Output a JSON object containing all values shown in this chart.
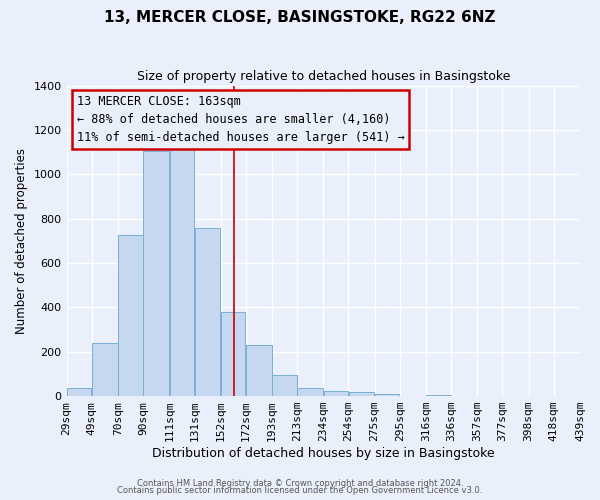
{
  "title": "13, MERCER CLOSE, BASINGSTOKE, RG22 6NZ",
  "subtitle": "Size of property relative to detached houses in Basingstoke",
  "xlabel": "Distribution of detached houses by size in Basingstoke",
  "ylabel": "Number of detached properties",
  "bar_edges": [
    29,
    49,
    70,
    90,
    111,
    131,
    152,
    172,
    193,
    213,
    234,
    254,
    275,
    295,
    316,
    336,
    357,
    377,
    398,
    418,
    439
  ],
  "bar_heights": [
    35,
    240,
    725,
    1105,
    1120,
    760,
    380,
    230,
    95,
    35,
    25,
    20,
    10,
    0,
    5,
    0,
    0,
    0,
    0,
    0
  ],
  "bar_color": "#c5d8f0",
  "bar_edge_color": "#7aafd4",
  "vline_x": 163,
  "vline_color": "#cc0000",
  "annotation_line1": "13 MERCER CLOSE: 163sqm",
  "annotation_line2": "← 88% of detached houses are smaller (4,160)",
  "annotation_line3": "11% of semi-detached houses are larger (541) →",
  "annotation_box_color": "#cc0000",
  "ylim": [
    0,
    1400
  ],
  "yticks": [
    0,
    200,
    400,
    600,
    800,
    1000,
    1200,
    1400
  ],
  "background_color": "#eaf0fb",
  "grid_color": "#ffffff",
  "tick_labels": [
    "29sqm",
    "49sqm",
    "70sqm",
    "90sqm",
    "111sqm",
    "131sqm",
    "152sqm",
    "172sqm",
    "193sqm",
    "213sqm",
    "234sqm",
    "254sqm",
    "275sqm",
    "295sqm",
    "316sqm",
    "336sqm",
    "357sqm",
    "377sqm",
    "398sqm",
    "418sqm",
    "439sqm"
  ],
  "footer_line1": "Contains HM Land Registry data © Crown copyright and database right 2024.",
  "footer_line2": "Contains public sector information licensed under the Open Government Licence v3.0."
}
